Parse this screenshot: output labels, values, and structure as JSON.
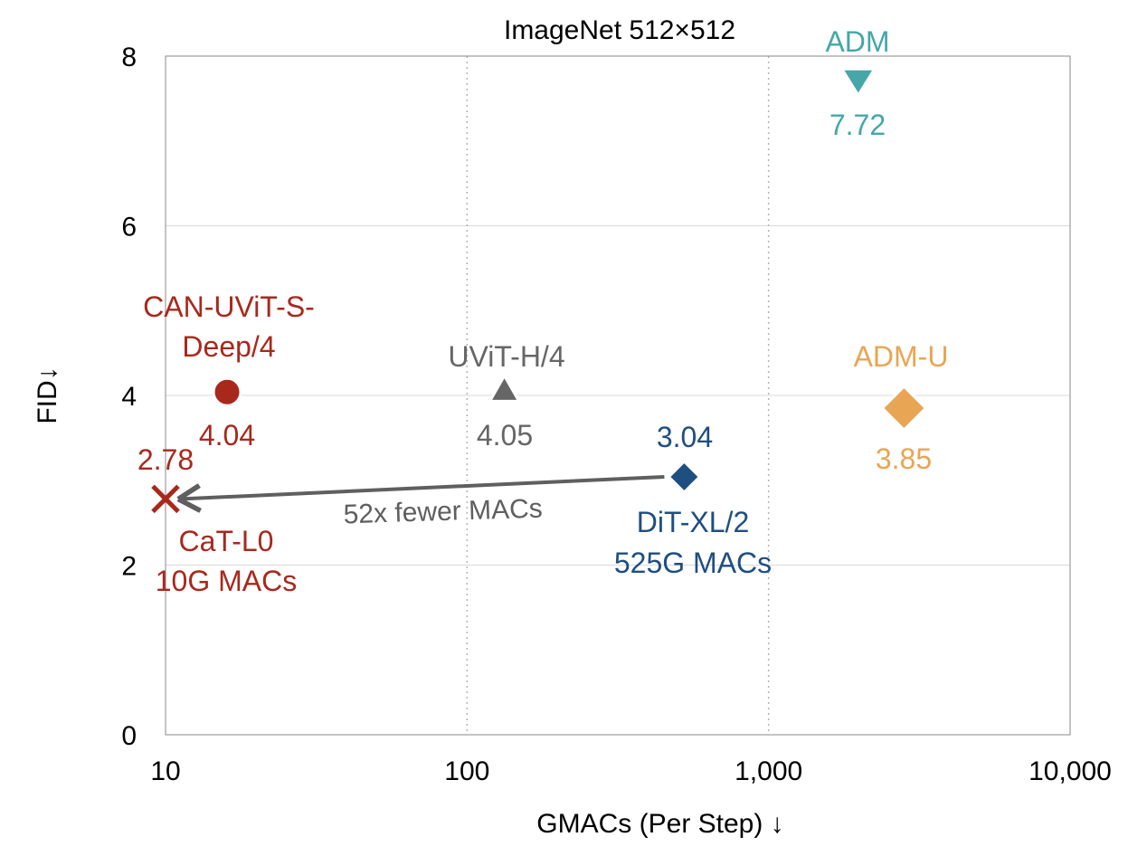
{
  "chart_data": {
    "type": "scatter",
    "title": "ImageNet 512×512",
    "xlabel": "GMACs (Per Step) ↓",
    "ylabel": "FID↓",
    "xscale": "log",
    "xlim": [
      10,
      10000
    ],
    "ylim": [
      0,
      8
    ],
    "xticks": [
      10,
      100,
      1000,
      10000
    ],
    "xtick_labels": [
      "10",
      "100",
      "1,000",
      "10,000"
    ],
    "yticks": [
      0,
      2,
      4,
      6,
      8
    ],
    "ytick_labels": [
      "0",
      "2",
      "4",
      "6",
      "8"
    ],
    "grid": "on",
    "points": [
      {
        "name": "CAN-UViT-S-Deep/4",
        "label_lines": [
          "CAN-UViT-S-",
          "Deep/4"
        ],
        "x": 16,
        "y": 4.04,
        "value_label": "4.04",
        "marker": "circle",
        "color": "#a8281c"
      },
      {
        "name": "UViT-H/4",
        "label_lines": [
          "UViT-H/4"
        ],
        "x": 133,
        "y": 4.05,
        "value_label": "4.05",
        "marker": "triangle-up",
        "color": "#666666"
      },
      {
        "name": "DiT-XL/2",
        "label_lines": [
          "DiT-XL/2",
          "525G MACs"
        ],
        "x": 525,
        "y": 3.04,
        "value_label": "3.04",
        "marker": "diamond",
        "color": "#1f4e80"
      },
      {
        "name": "ADM-U",
        "label_lines": [
          "ADM-U"
        ],
        "x": 2813,
        "y": 3.85,
        "value_label": "3.85",
        "marker": "diamond",
        "color": "#e8a553"
      },
      {
        "name": "ADM",
        "label_lines": [
          "ADM"
        ],
        "x": 1983,
        "y": 7.72,
        "value_label": "7.72",
        "marker": "triangle-down",
        "color": "#45a7a8"
      },
      {
        "name": "CaT-L0",
        "label_lines": [
          "CaT-L0",
          "10G MACs"
        ],
        "x": 10,
        "y": 2.78,
        "value_label": "2.78",
        "marker": "x",
        "color": "#a8281c"
      }
    ],
    "annotation": {
      "text": "52x fewer MACs",
      "from": [
        525,
        3.04
      ],
      "to": [
        10,
        2.78
      ],
      "color": "#5f5f5f"
    }
  }
}
